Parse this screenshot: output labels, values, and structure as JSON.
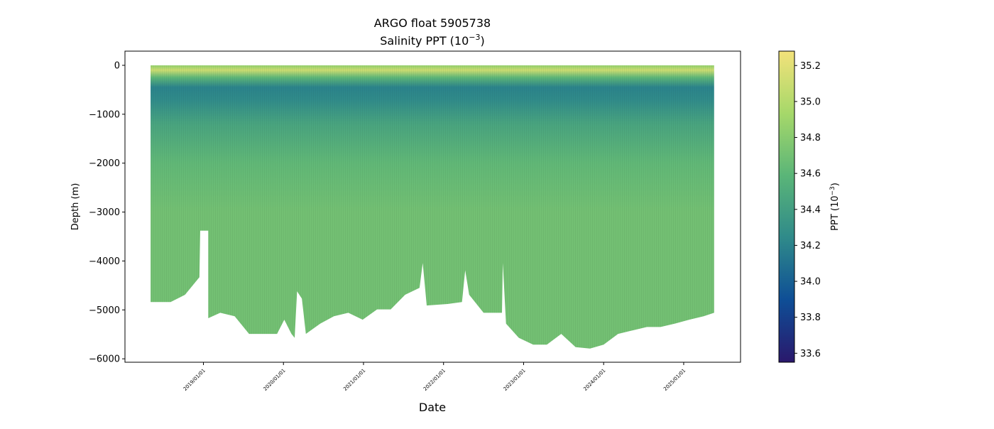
{
  "chart_data": {
    "type": "scatter",
    "title_line1": "ARGO float 5905738",
    "title_line2_prefix": "Salinity PPT (10",
    "title_line2_exp": "−3",
    "title_line2_suffix": ")",
    "xlabel": "Date",
    "ylabel": "Depth (m)",
    "xlim_year": [
      2018.02,
      2025.71
    ],
    "ylim": [
      -6070,
      290
    ],
    "x_ticks": [
      {
        "label": "2019/01/01",
        "year": 2019
      },
      {
        "label": "2020/01/01",
        "year": 2020
      },
      {
        "label": "2021/01/01",
        "year": 2021
      },
      {
        "label": "2022/01/01",
        "year": 2022
      },
      {
        "label": "2023/01/01",
        "year": 2023
      },
      {
        "label": "2024/01/01",
        "year": 2024
      },
      {
        "label": "2025/01/01",
        "year": 2025
      }
    ],
    "y_ticks": [
      {
        "label": "0",
        "value": 0
      },
      {
        "label": "−1000",
        "value": -1000
      },
      {
        "label": "−2000",
        "value": -2000
      },
      {
        "label": "−3000",
        "value": -3000
      },
      {
        "label": "−4000",
        "value": -4000
      },
      {
        "label": "−5000",
        "value": -5000
      },
      {
        "label": "−6000",
        "value": -6000
      }
    ],
    "profile_top_depth": 0,
    "profile_max_depth": [
      [
        2018.34,
        -4840
      ],
      [
        2018.59,
        -4840
      ],
      [
        2018.77,
        -4690
      ],
      [
        2018.95,
        -4330
      ],
      [
        2018.96,
        -3380
      ],
      [
        2019.06,
        -3380
      ],
      [
        2019.06,
        -5170
      ],
      [
        2019.21,
        -5060
      ],
      [
        2019.39,
        -5130
      ],
      [
        2019.57,
        -5490
      ],
      [
        2019.75,
        -5490
      ],
      [
        2019.92,
        -5490
      ],
      [
        2020.01,
        -5200
      ],
      [
        2020.1,
        -5490
      ],
      [
        2020.14,
        -5570
      ],
      [
        2020.17,
        -4620
      ],
      [
        2020.23,
        -4770
      ],
      [
        2020.28,
        -5490
      ],
      [
        2020.46,
        -5280
      ],
      [
        2020.63,
        -5130
      ],
      [
        2020.81,
        -5060
      ],
      [
        2020.99,
        -5200
      ],
      [
        2021.17,
        -4990
      ],
      [
        2021.34,
        -4990
      ],
      [
        2021.52,
        -4690
      ],
      [
        2021.7,
        -4550
      ],
      [
        2021.74,
        -4040
      ],
      [
        2021.79,
        -4910
      ],
      [
        2022.05,
        -4880
      ],
      [
        2022.23,
        -4840
      ],
      [
        2022.27,
        -4190
      ],
      [
        2022.32,
        -4690
      ],
      [
        2022.5,
        -5060
      ],
      [
        2022.73,
        -5060
      ],
      [
        2022.74,
        -4040
      ],
      [
        2022.78,
        -5280
      ],
      [
        2022.94,
        -5570
      ],
      [
        2023.12,
        -5710
      ],
      [
        2023.29,
        -5710
      ],
      [
        2023.47,
        -5490
      ],
      [
        2023.65,
        -5760
      ],
      [
        2023.83,
        -5790
      ],
      [
        2024.0,
        -5710
      ],
      [
        2024.18,
        -5490
      ],
      [
        2024.36,
        -5420
      ],
      [
        2024.54,
        -5350
      ],
      [
        2024.71,
        -5350
      ],
      [
        2024.89,
        -5280
      ],
      [
        2025.07,
        -5200
      ],
      [
        2025.25,
        -5130
      ],
      [
        2025.38,
        -5060
      ]
    ],
    "salinity_by_depth": [
      {
        "depth": 0,
        "value": 34.85
      },
      {
        "depth": -100,
        "value": 35.1
      },
      {
        "depth": -250,
        "value": 34.6
      },
      {
        "depth": -450,
        "value": 34.2
      },
      {
        "depth": -700,
        "value": 34.25
      },
      {
        "depth": -1200,
        "value": 34.45
      },
      {
        "depth": -2000,
        "value": 34.62
      },
      {
        "depth": -3000,
        "value": 34.7
      },
      {
        "depth": -6000,
        "value": 34.7
      }
    ],
    "colorbar": {
      "label_prefix": "PPT (10",
      "label_exp": "−3",
      "label_suffix": ")",
      "range": [
        33.55,
        35.28
      ],
      "colormap": "haline",
      "colors": [
        "#2a186c",
        "#0e4e96",
        "#2f8a8a",
        "#5ab578",
        "#a6d86a",
        "#f3e27a"
      ],
      "ticks": [
        {
          "label": "33.6",
          "value": 33.6
        },
        {
          "label": "33.8",
          "value": 33.8
        },
        {
          "label": "34.0",
          "value": 34.0
        },
        {
          "label": "34.2",
          "value": 34.2
        },
        {
          "label": "34.4",
          "value": 34.4
        },
        {
          "label": "34.6",
          "value": 34.6
        },
        {
          "label": "34.8",
          "value": 34.8
        },
        {
          "label": "35.0",
          "value": 35.0
        },
        {
          "label": "35.2",
          "value": 35.2
        }
      ]
    }
  }
}
